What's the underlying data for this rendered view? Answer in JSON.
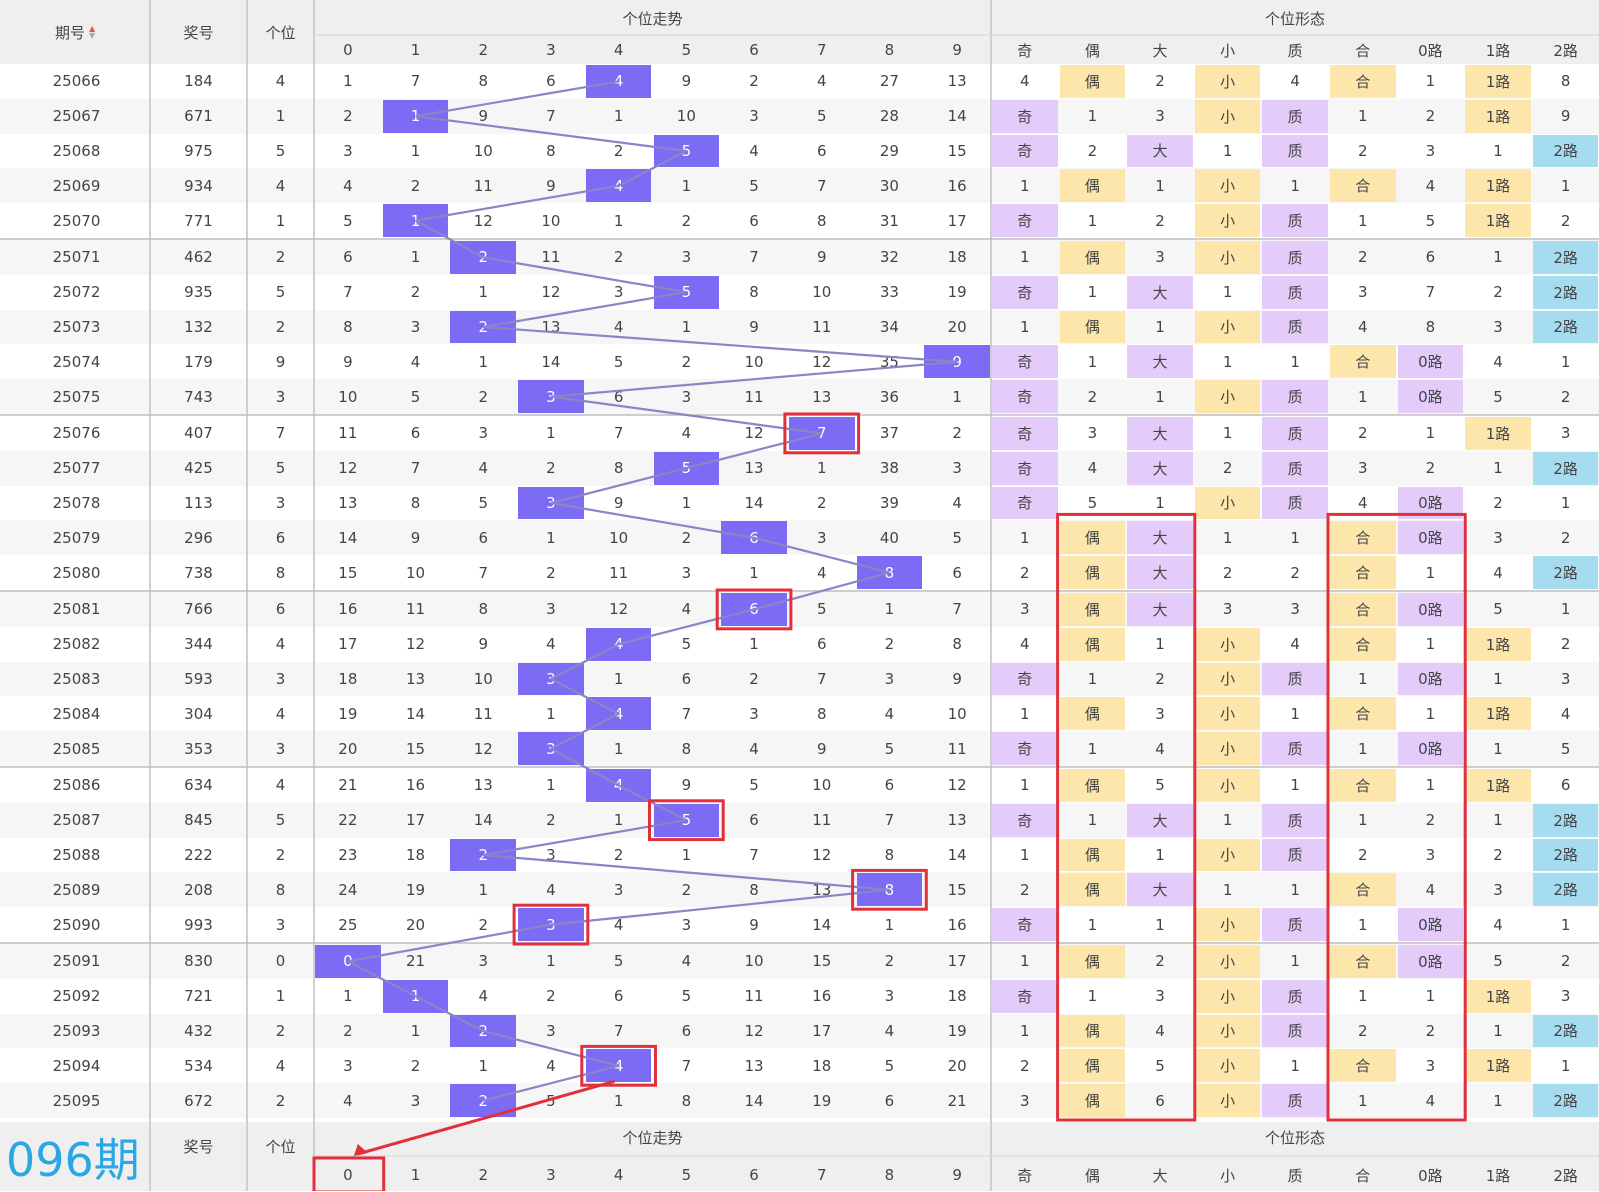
{
  "header": {
    "period_label": "期号",
    "number_label": "奖号",
    "unit_label": "个位",
    "trend_label": "个位走势",
    "form_label": "个位形态",
    "digit_labels": [
      "0",
      "1",
      "2",
      "3",
      "4",
      "5",
      "6",
      "7",
      "8",
      "9"
    ],
    "form_labels": [
      "奇",
      "偶",
      "大",
      "小",
      "质",
      "合",
      "0路",
      "1路",
      "2路"
    ]
  },
  "footer": {
    "period_label": "096期",
    "number_label": "奖号",
    "unit_label": "个位",
    "trend_label": "个位走势",
    "form_label": "个位形态",
    "prediction_digit": "0"
  },
  "colors": {
    "hit": "#7b6bf5",
    "purple": "#e3ccf9",
    "orange": "#fde6ac",
    "blue": "#a6dcf0",
    "line": "#8a86c6",
    "highlight_border": "#e0303c",
    "footer_title": "#2ba7e3"
  },
  "rows": [
    {
      "period": "25066",
      "number": "184",
      "unit": "4",
      "trend": [
        "1",
        "7",
        "8",
        "6",
        "4",
        "9",
        "2",
        "4",
        "27",
        "13"
      ],
      "form": [
        "4",
        "偶",
        "2",
        "小",
        "4",
        "合",
        "1",
        "1路",
        "8"
      ]
    },
    {
      "period": "25067",
      "number": "671",
      "unit": "1",
      "trend": [
        "2",
        "1",
        "9",
        "7",
        "1",
        "10",
        "3",
        "5",
        "28",
        "14"
      ],
      "form": [
        "奇",
        "1",
        "3",
        "小",
        "质",
        "1",
        "2",
        "1路",
        "9"
      ]
    },
    {
      "period": "25068",
      "number": "975",
      "unit": "5",
      "trend": [
        "3",
        "1",
        "10",
        "8",
        "2",
        "5",
        "4",
        "6",
        "29",
        "15"
      ],
      "form": [
        "奇",
        "2",
        "大",
        "1",
        "质",
        "2",
        "3",
        "1",
        "2路"
      ]
    },
    {
      "period": "25069",
      "number": "934",
      "unit": "4",
      "trend": [
        "4",
        "2",
        "11",
        "9",
        "4",
        "1",
        "5",
        "7",
        "30",
        "16"
      ],
      "form": [
        "1",
        "偶",
        "1",
        "小",
        "1",
        "合",
        "4",
        "1路",
        "1"
      ]
    },
    {
      "period": "25070",
      "number": "771",
      "unit": "1",
      "trend": [
        "5",
        "1",
        "12",
        "10",
        "1",
        "2",
        "6",
        "8",
        "31",
        "17"
      ],
      "form": [
        "奇",
        "1",
        "2",
        "小",
        "质",
        "1",
        "5",
        "1路",
        "2"
      ]
    },
    {
      "period": "25071",
      "number": "462",
      "unit": "2",
      "trend": [
        "6",
        "1",
        "2",
        "11",
        "2",
        "3",
        "7",
        "9",
        "32",
        "18"
      ],
      "form": [
        "1",
        "偶",
        "3",
        "小",
        "质",
        "2",
        "6",
        "1",
        "2路"
      ]
    },
    {
      "period": "25072",
      "number": "935",
      "unit": "5",
      "trend": [
        "7",
        "2",
        "1",
        "12",
        "3",
        "5",
        "8",
        "10",
        "33",
        "19"
      ],
      "form": [
        "奇",
        "1",
        "大",
        "1",
        "质",
        "3",
        "7",
        "2",
        "2路"
      ]
    },
    {
      "period": "25073",
      "number": "132",
      "unit": "2",
      "trend": [
        "8",
        "3",
        "2",
        "13",
        "4",
        "1",
        "9",
        "11",
        "34",
        "20"
      ],
      "form": [
        "1",
        "偶",
        "1",
        "小",
        "质",
        "4",
        "8",
        "3",
        "2路"
      ]
    },
    {
      "period": "25074",
      "number": "179",
      "unit": "9",
      "trend": [
        "9",
        "4",
        "1",
        "14",
        "5",
        "2",
        "10",
        "12",
        "35",
        "9"
      ],
      "form": [
        "奇",
        "1",
        "大",
        "1",
        "1",
        "合",
        "0路",
        "4",
        "1"
      ]
    },
    {
      "period": "25075",
      "number": "743",
      "unit": "3",
      "trend": [
        "10",
        "5",
        "2",
        "3",
        "6",
        "3",
        "11",
        "13",
        "36",
        "1"
      ],
      "form": [
        "奇",
        "2",
        "1",
        "小",
        "质",
        "1",
        "0路",
        "5",
        "2"
      ]
    },
    {
      "period": "25076",
      "number": "407",
      "unit": "7",
      "trend": [
        "11",
        "6",
        "3",
        "1",
        "7",
        "4",
        "12",
        "7",
        "37",
        "2"
      ],
      "form": [
        "奇",
        "3",
        "大",
        "1",
        "质",
        "2",
        "1",
        "1路",
        "3"
      ]
    },
    {
      "period": "25077",
      "number": "425",
      "unit": "5",
      "trend": [
        "12",
        "7",
        "4",
        "2",
        "8",
        "5",
        "13",
        "1",
        "38",
        "3"
      ],
      "form": [
        "奇",
        "4",
        "大",
        "2",
        "质",
        "3",
        "2",
        "1",
        "2路"
      ]
    },
    {
      "period": "25078",
      "number": "113",
      "unit": "3",
      "trend": [
        "13",
        "8",
        "5",
        "3",
        "9",
        "1",
        "14",
        "2",
        "39",
        "4"
      ],
      "form": [
        "奇",
        "5",
        "1",
        "小",
        "质",
        "4",
        "0路",
        "2",
        "1"
      ]
    },
    {
      "period": "25079",
      "number": "296",
      "unit": "6",
      "trend": [
        "14",
        "9",
        "6",
        "1",
        "10",
        "2",
        "6",
        "3",
        "40",
        "5"
      ],
      "form": [
        "1",
        "偶",
        "大",
        "1",
        "1",
        "合",
        "0路",
        "3",
        "2"
      ]
    },
    {
      "period": "25080",
      "number": "738",
      "unit": "8",
      "trend": [
        "15",
        "10",
        "7",
        "2",
        "11",
        "3",
        "1",
        "4",
        "8",
        "6"
      ],
      "form": [
        "2",
        "偶",
        "大",
        "2",
        "2",
        "合",
        "1",
        "4",
        "2路"
      ]
    },
    {
      "period": "25081",
      "number": "766",
      "unit": "6",
      "trend": [
        "16",
        "11",
        "8",
        "3",
        "12",
        "4",
        "6",
        "5",
        "1",
        "7"
      ],
      "form": [
        "3",
        "偶",
        "大",
        "3",
        "3",
        "合",
        "0路",
        "5",
        "1"
      ]
    },
    {
      "period": "25082",
      "number": "344",
      "unit": "4",
      "trend": [
        "17",
        "12",
        "9",
        "4",
        "4",
        "5",
        "1",
        "6",
        "2",
        "8"
      ],
      "form": [
        "4",
        "偶",
        "1",
        "小",
        "4",
        "合",
        "1",
        "1路",
        "2"
      ]
    },
    {
      "period": "25083",
      "number": "593",
      "unit": "3",
      "trend": [
        "18",
        "13",
        "10",
        "3",
        "1",
        "6",
        "2",
        "7",
        "3",
        "9"
      ],
      "form": [
        "奇",
        "1",
        "2",
        "小",
        "质",
        "1",
        "0路",
        "1",
        "3"
      ]
    },
    {
      "period": "25084",
      "number": "304",
      "unit": "4",
      "trend": [
        "19",
        "14",
        "11",
        "1",
        "4",
        "7",
        "3",
        "8",
        "4",
        "10"
      ],
      "form": [
        "1",
        "偶",
        "3",
        "小",
        "1",
        "合",
        "1",
        "1路",
        "4"
      ]
    },
    {
      "period": "25085",
      "number": "353",
      "unit": "3",
      "trend": [
        "20",
        "15",
        "12",
        "3",
        "1",
        "8",
        "4",
        "9",
        "5",
        "11"
      ],
      "form": [
        "奇",
        "1",
        "4",
        "小",
        "质",
        "1",
        "0路",
        "1",
        "5"
      ]
    },
    {
      "period": "25086",
      "number": "634",
      "unit": "4",
      "trend": [
        "21",
        "16",
        "13",
        "1",
        "4",
        "9",
        "5",
        "10",
        "6",
        "12"
      ],
      "form": [
        "1",
        "偶",
        "5",
        "小",
        "1",
        "合",
        "1",
        "1路",
        "6"
      ]
    },
    {
      "period": "25087",
      "number": "845",
      "unit": "5",
      "trend": [
        "22",
        "17",
        "14",
        "2",
        "1",
        "5",
        "6",
        "11",
        "7",
        "13"
      ],
      "form": [
        "奇",
        "1",
        "大",
        "1",
        "质",
        "1",
        "2",
        "1",
        "2路"
      ]
    },
    {
      "period": "25088",
      "number": "222",
      "unit": "2",
      "trend": [
        "23",
        "18",
        "2",
        "3",
        "2",
        "1",
        "7",
        "12",
        "8",
        "14"
      ],
      "form": [
        "1",
        "偶",
        "1",
        "小",
        "质",
        "2",
        "3",
        "2",
        "2路"
      ]
    },
    {
      "period": "25089",
      "number": "208",
      "unit": "8",
      "trend": [
        "24",
        "19",
        "1",
        "4",
        "3",
        "2",
        "8",
        "13",
        "8",
        "15"
      ],
      "form": [
        "2",
        "偶",
        "大",
        "1",
        "1",
        "合",
        "4",
        "3",
        "2路"
      ]
    },
    {
      "period": "25090",
      "number": "993",
      "unit": "3",
      "trend": [
        "25",
        "20",
        "2",
        "3",
        "4",
        "3",
        "9",
        "14",
        "1",
        "16"
      ],
      "form": [
        "奇",
        "1",
        "1",
        "小",
        "质",
        "1",
        "0路",
        "4",
        "1"
      ]
    },
    {
      "period": "25091",
      "number": "830",
      "unit": "0",
      "trend": [
        "0",
        "21",
        "3",
        "1",
        "5",
        "4",
        "10",
        "15",
        "2",
        "17"
      ],
      "form": [
        "1",
        "偶",
        "2",
        "小",
        "1",
        "合",
        "0路",
        "5",
        "2"
      ]
    },
    {
      "period": "25092",
      "number": "721",
      "unit": "1",
      "trend": [
        "1",
        "1",
        "4",
        "2",
        "6",
        "5",
        "11",
        "16",
        "3",
        "18"
      ],
      "form": [
        "奇",
        "1",
        "3",
        "小",
        "质",
        "1",
        "1",
        "1路",
        "3"
      ]
    },
    {
      "period": "25093",
      "number": "432",
      "unit": "2",
      "trend": [
        "2",
        "1",
        "2",
        "3",
        "7",
        "6",
        "12",
        "17",
        "4",
        "19"
      ],
      "form": [
        "1",
        "偶",
        "4",
        "小",
        "质",
        "2",
        "2",
        "1",
        "2路"
      ]
    },
    {
      "period": "25094",
      "number": "534",
      "unit": "4",
      "trend": [
        "3",
        "2",
        "1",
        "4",
        "4",
        "7",
        "13",
        "18",
        "5",
        "20"
      ],
      "form": [
        "2",
        "偶",
        "5",
        "小",
        "1",
        "合",
        "3",
        "1路",
        "1"
      ]
    },
    {
      "period": "25095",
      "number": "672",
      "unit": "2",
      "trend": [
        "4",
        "3",
        "2",
        "5",
        "1",
        "8",
        "14",
        "19",
        "6",
        "21"
      ],
      "form": [
        "3",
        "偶",
        "6",
        "小",
        "质",
        "1",
        "4",
        "1",
        "2路"
      ]
    }
  ]
}
